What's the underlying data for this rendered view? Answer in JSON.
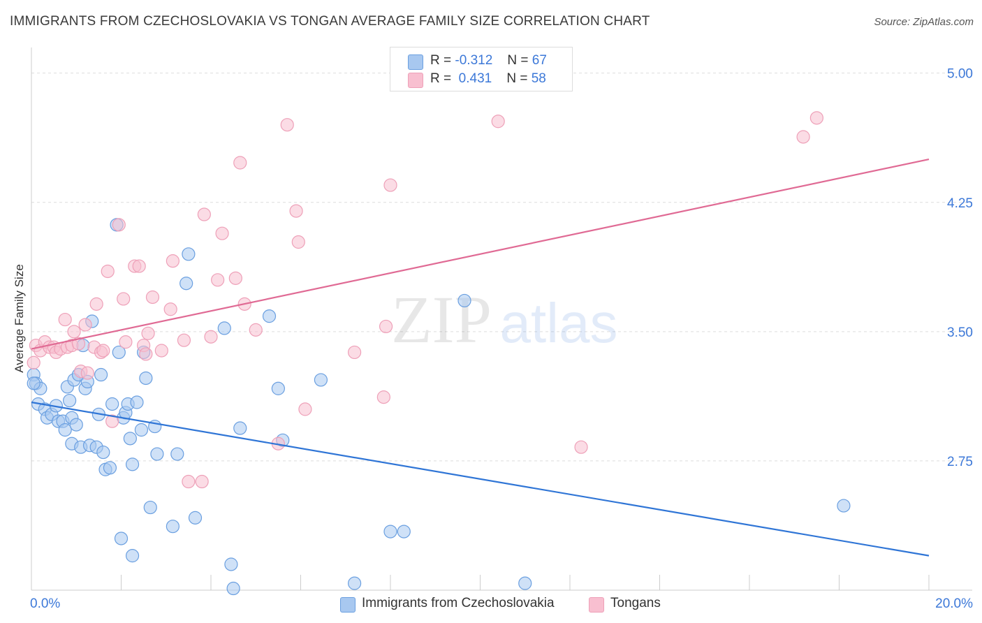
{
  "title": "IMMIGRANTS FROM CZECHOSLOVAKIA VS TONGAN AVERAGE FAMILY SIZE CORRELATION CHART",
  "source": "Source: ZipAtlas.com",
  "watermark": {
    "zip": "ZIP",
    "atlas": "atlas"
  },
  "legend_top": {
    "series1": {
      "r_label": "R =",
      "r_value": "-0.312",
      "n_label": "N =",
      "n_value": "67"
    },
    "series2": {
      "r_label": "R =",
      "r_value": "0.431",
      "n_label": "N =",
      "n_value": "58"
    }
  },
  "legend_bottom": {
    "series1": "Immigrants from Czechoslovakia",
    "series2": "Tongans"
  },
  "colors": {
    "blue_fill": "#a8c8f0",
    "blue_stroke": "#6a9fe0",
    "blue_line": "#2f75d6",
    "pink_fill": "#f8bfd0",
    "pink_stroke": "#eea0b8",
    "pink_line": "#e06a94",
    "tick": "#3c78d8",
    "grid": "#dddddd"
  },
  "chart_data": {
    "type": "scatter",
    "title": "IMMIGRANTS FROM CZECHOSLOVAKIA VS TONGAN AVERAGE FAMILY SIZE CORRELATION CHART",
    "xlabel": "",
    "ylabel": "Average Family Size",
    "xlim": [
      0,
      20
    ],
    "ylim": [
      2.0,
      5.1
    ],
    "x_tick_labels": [
      "0.0%",
      "20.0%"
    ],
    "y_ticks": [
      2.75,
      3.5,
      4.25,
      5.0
    ],
    "y_tick_labels": [
      "2.75",
      "3.50",
      "4.25",
      "5.00"
    ],
    "grid": true,
    "series": [
      {
        "name": "Immigrants from Czechoslovakia",
        "color": "#a8c8f0",
        "trend": {
          "x": [
            0,
            20
          ],
          "y": [
            3.09,
            2.2
          ]
        },
        "points": [
          [
            0.05,
            3.25
          ],
          [
            0.1,
            3.2
          ],
          [
            0.2,
            3.17
          ],
          [
            0.15,
            3.08
          ],
          [
            0.3,
            3.05
          ],
          [
            0.35,
            3.0
          ],
          [
            0.45,
            3.02
          ],
          [
            0.55,
            3.07
          ],
          [
            0.6,
            2.98
          ],
          [
            0.7,
            2.98
          ],
          [
            0.75,
            2.93
          ],
          [
            0.8,
            3.18
          ],
          [
            0.85,
            3.1
          ],
          [
            0.9,
            2.85
          ],
          [
            0.95,
            3.22
          ],
          [
            0.9,
            3.0
          ],
          [
            1.0,
            2.96
          ],
          [
            1.05,
            3.25
          ],
          [
            1.1,
            2.83
          ],
          [
            1.15,
            3.42
          ],
          [
            1.2,
            3.17
          ],
          [
            1.25,
            3.21
          ],
          [
            1.3,
            2.84
          ],
          [
            1.35,
            3.56
          ],
          [
            1.45,
            2.83
          ],
          [
            1.5,
            3.02
          ],
          [
            1.55,
            3.25
          ],
          [
            1.6,
            2.8
          ],
          [
            1.65,
            2.7
          ],
          [
            1.75,
            2.71
          ],
          [
            1.8,
            3.08
          ],
          [
            1.9,
            4.12
          ],
          [
            1.95,
            3.38
          ],
          [
            2.05,
            3.0
          ],
          [
            2.0,
            2.3
          ],
          [
            2.1,
            3.03
          ],
          [
            2.15,
            3.08
          ],
          [
            2.2,
            2.88
          ],
          [
            2.25,
            2.73
          ],
          [
            2.25,
            2.2
          ],
          [
            2.35,
            3.09
          ],
          [
            2.45,
            2.93
          ],
          [
            2.5,
            3.38
          ],
          [
            2.55,
            3.23
          ],
          [
            2.65,
            2.48
          ],
          [
            2.75,
            2.95
          ],
          [
            2.8,
            2.79
          ],
          [
            3.15,
            2.37
          ],
          [
            3.25,
            2.79
          ],
          [
            3.45,
            3.78
          ],
          [
            3.5,
            3.95
          ],
          [
            3.65,
            2.42
          ],
          [
            4.3,
            3.52
          ],
          [
            4.45,
            2.15
          ],
          [
            4.5,
            2.01
          ],
          [
            4.65,
            2.94
          ],
          [
            5.3,
            3.59
          ],
          [
            5.5,
            3.17
          ],
          [
            5.6,
            2.87
          ],
          [
            6.45,
            3.22
          ],
          [
            7.2,
            2.04
          ],
          [
            8.0,
            2.34
          ],
          [
            8.3,
            2.34
          ],
          [
            9.65,
            3.68
          ],
          [
            11.0,
            2.04
          ],
          [
            18.1,
            2.49
          ],
          [
            0.05,
            3.2
          ]
        ]
      },
      {
        "name": "Tongans",
        "color": "#f8bfd0",
        "trend": {
          "x": [
            0,
            20
          ],
          "y": [
            3.4,
            4.5
          ]
        },
        "points": [
          [
            0.05,
            3.32
          ],
          [
            0.1,
            3.42
          ],
          [
            0.2,
            3.39
          ],
          [
            0.3,
            3.44
          ],
          [
            0.4,
            3.41
          ],
          [
            0.5,
            3.41
          ],
          [
            0.55,
            3.38
          ],
          [
            0.65,
            3.4
          ],
          [
            0.75,
            3.57
          ],
          [
            0.8,
            3.41
          ],
          [
            0.9,
            3.42
          ],
          [
            0.95,
            3.5
          ],
          [
            1.05,
            3.43
          ],
          [
            1.1,
            3.27
          ],
          [
            1.2,
            3.54
          ],
          [
            1.25,
            3.26
          ],
          [
            1.4,
            3.41
          ],
          [
            1.45,
            3.66
          ],
          [
            1.55,
            3.38
          ],
          [
            1.6,
            3.39
          ],
          [
            1.7,
            3.85
          ],
          [
            1.8,
            2.98
          ],
          [
            1.95,
            4.12
          ],
          [
            2.05,
            3.69
          ],
          [
            2.1,
            3.44
          ],
          [
            2.3,
            3.88
          ],
          [
            2.4,
            3.88
          ],
          [
            2.5,
            3.42
          ],
          [
            2.55,
            3.37
          ],
          [
            2.6,
            3.49
          ],
          [
            2.7,
            3.7
          ],
          [
            2.9,
            3.39
          ],
          [
            3.1,
            3.63
          ],
          [
            3.15,
            3.91
          ],
          [
            3.4,
            3.45
          ],
          [
            3.5,
            2.63
          ],
          [
            3.8,
            2.63
          ],
          [
            3.85,
            4.18
          ],
          [
            4.0,
            3.47
          ],
          [
            4.15,
            3.8
          ],
          [
            4.25,
            4.07
          ],
          [
            4.55,
            3.81
          ],
          [
            4.65,
            4.48
          ],
          [
            4.75,
            3.66
          ],
          [
            5.0,
            3.51
          ],
          [
            5.5,
            2.85
          ],
          [
            5.7,
            4.7
          ],
          [
            5.9,
            4.2
          ],
          [
            5.95,
            4.02
          ],
          [
            6.1,
            3.05
          ],
          [
            7.2,
            3.38
          ],
          [
            7.85,
            3.12
          ],
          [
            7.9,
            3.53
          ],
          [
            8.0,
            4.35
          ],
          [
            10.4,
            4.72
          ],
          [
            12.25,
            2.83
          ],
          [
            17.2,
            4.63
          ],
          [
            17.5,
            4.74
          ]
        ]
      }
    ]
  }
}
